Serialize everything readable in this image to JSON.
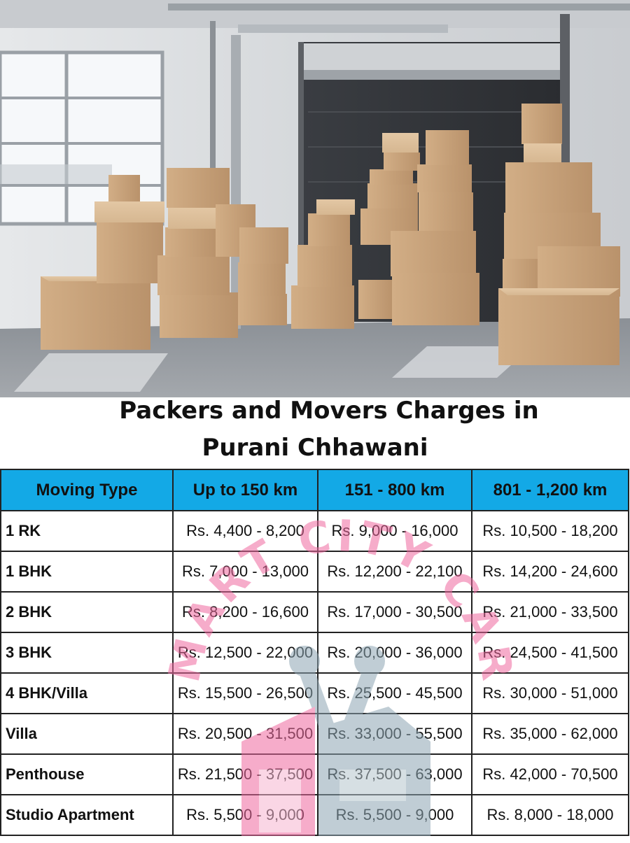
{
  "photo": {
    "icon": "warehouse-boxes-photo"
  },
  "title": {
    "line1": "Packers and Movers Charges in",
    "line2": "Purani Chhawani"
  },
  "table": {
    "headers": [
      "Moving Type",
      "Up to 150 km",
      "151 - 800 km",
      "801 - 1,200 km"
    ],
    "rows": [
      {
        "type": "1 RK",
        "c1": "Rs. 4,400 - 8,200",
        "c2": "Rs. 9,000 - 16,000",
        "c3": "Rs. 10,500 - 18,200"
      },
      {
        "type": "1 BHK",
        "c1": "Rs. 7,000 - 13,000",
        "c2": "Rs. 12,200 - 22,100",
        "c3": "Rs. 14,200 - 24,600"
      },
      {
        "type": "2 BHK",
        "c1": "Rs. 8,200 - 16,600",
        "c2": "Rs. 17,000 - 30,500",
        "c3": "Rs. 21,000 - 33,500"
      },
      {
        "type": "3 BHK",
        "c1": "Rs. 12,500 - 22,000",
        "c2": "Rs. 20,000 - 36,000",
        "c3": "Rs. 24,500 - 41,500"
      },
      {
        "type": "4 BHK/Villa",
        "c1": "Rs. 15,500 - 26,500",
        "c2": "Rs. 25,500 - 45,500",
        "c3": "Rs. 30,000 - 51,000"
      },
      {
        "type": "Villa",
        "c1": "Rs. 20,500 - 31,500",
        "c2": "Rs. 33,000 - 55,500",
        "c3": "Rs. 35,000 - 62,000"
      },
      {
        "type": "Penthouse",
        "c1": "Rs. 21,500 - 37,500",
        "c2": "Rs. 37,500 - 63,000",
        "c3": "Rs. 42,000 - 70,500"
      },
      {
        "type": "Studio Apartment",
        "c1": "Rs. 5,500 - 9,000",
        "c2": "Rs. 5,500 - 9,000",
        "c3": "Rs. 8,000 - 18,000"
      }
    ]
  },
  "watermark": {
    "text": "SMART CITY CARE",
    "color": "#ef6aa0",
    "icon": "house-wrench-logo-icon"
  },
  "colors": {
    "header_bg": "#13a9e6"
  }
}
